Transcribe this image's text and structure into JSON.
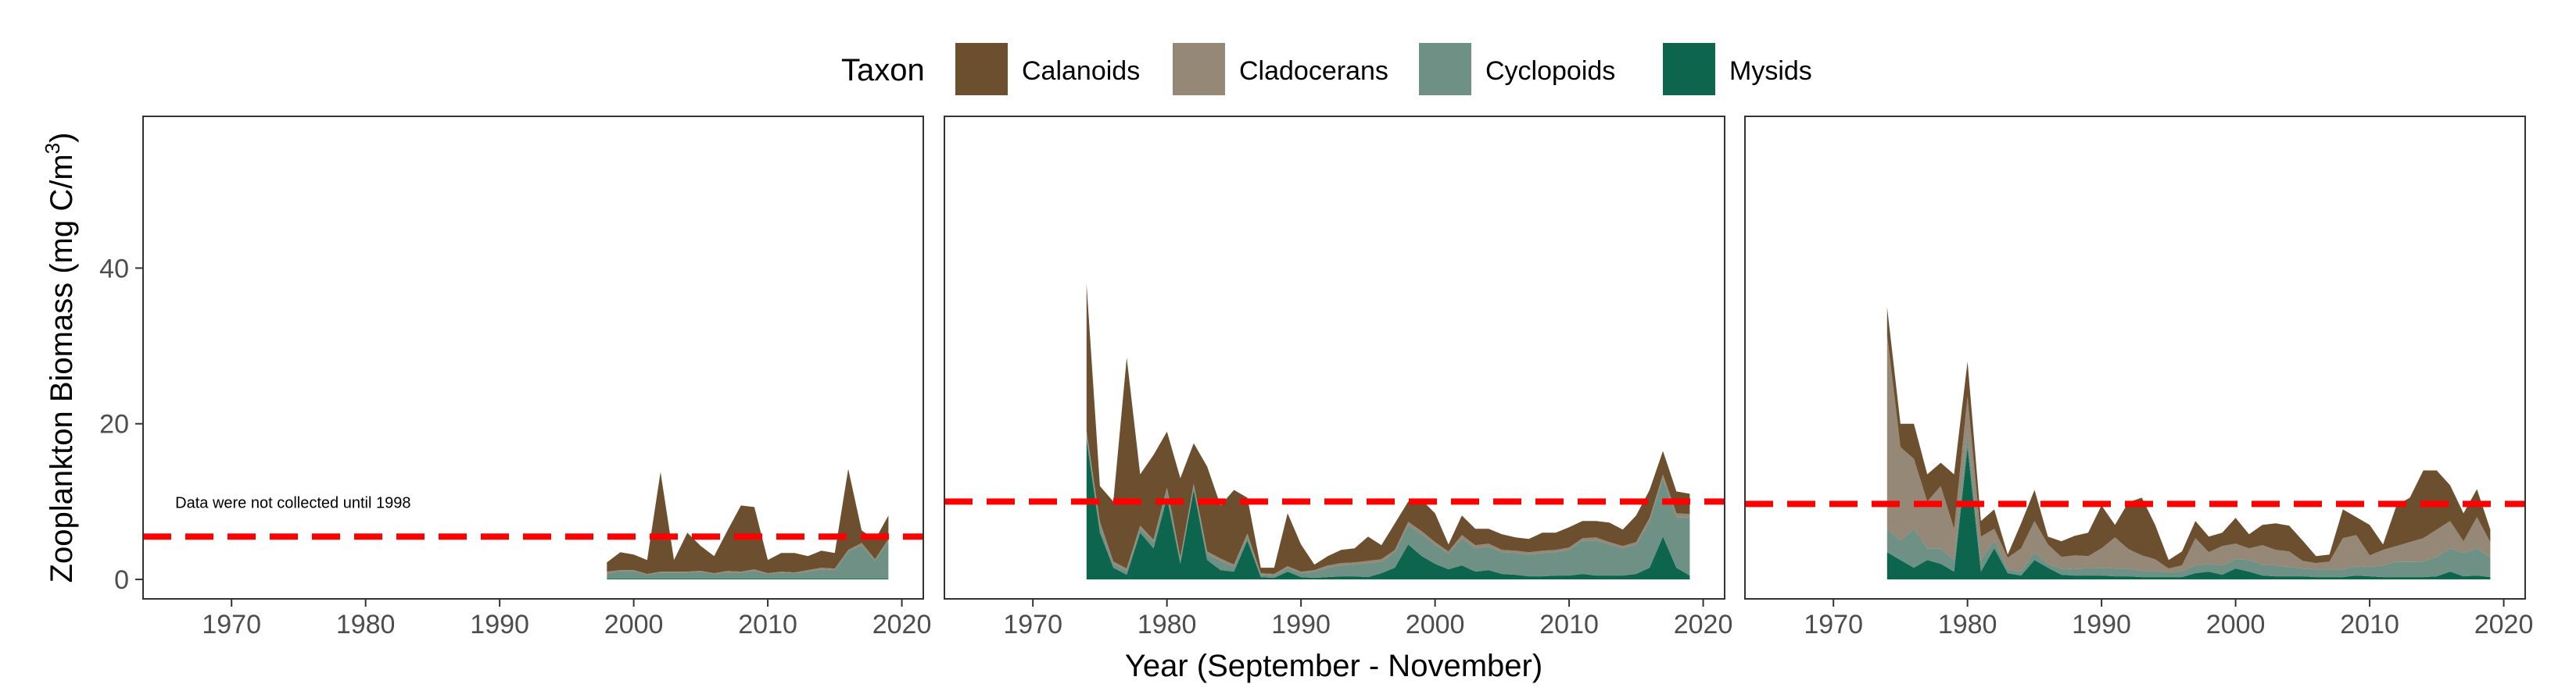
{
  "chart_data": {
    "type": "area",
    "stacked": true,
    "legend": {
      "title": "Taxon",
      "position": "top",
      "entries": [
        {
          "name": "Calanoids",
          "color": "#6B4F2E"
        },
        {
          "name": "Cladocerans",
          "color": "#958877"
        },
        {
          "name": "Cyclopoids",
          "color": "#6F9084"
        },
        {
          "name": "Mysids",
          "color": "#0C654C"
        }
      ]
    },
    "xlabel": "Year (September - November)",
    "ylabel": "Zooplankton Biomass (mg C/m³)",
    "ylabel_main": "Zooplankton Biomass (mg C/m",
    "ylabel_sup": "3",
    "ylabel_close": ")",
    "xlim": [
      1963.4,
      2021.6
    ],
    "ylim": [
      -2.5,
      59.5
    ],
    "x_ticks": [
      1970,
      1980,
      1990,
      2000,
      2010,
      2020
    ],
    "y_ticks": [
      0,
      20,
      40
    ],
    "grid": false,
    "mean_line_color": "#FF0000",
    "panels": [
      {
        "years": [
          1998,
          1999,
          2000,
          2001,
          2002,
          2003,
          2004,
          2005,
          2006,
          2007,
          2008,
          2009,
          2010,
          2011,
          2012,
          2013,
          2014,
          2015,
          2016,
          2017,
          2018,
          2019
        ],
        "series": {
          "Mysids": [
            0.1,
            0.1,
            0.1,
            0.1,
            0.1,
            0.1,
            0.1,
            0.1,
            0.1,
            0.1,
            0.1,
            0.1,
            0.1,
            0.1,
            0.1,
            0.1,
            0.1,
            0.1,
            0.1,
            0.1,
            0.1,
            0.1
          ],
          "Cyclopoids": [
            0.7,
            1.0,
            1.0,
            0.5,
            0.8,
            0.8,
            0.8,
            0.9,
            0.6,
            0.8,
            0.8,
            1.0,
            0.6,
            0.8,
            0.7,
            0.9,
            1.2,
            1.1,
            3.5,
            4.3,
            2.3,
            4.8
          ],
          "Cladocerans": [
            0.2,
            0.1,
            0.1,
            0.1,
            0.1,
            0.1,
            0.1,
            0.1,
            0.1,
            0.2,
            0.1,
            0.2,
            0.1,
            0.1,
            0.1,
            0.2,
            0.2,
            0.2,
            0.2,
            0.3,
            0.2,
            0.3
          ],
          "Calanoids": [
            1.2,
            2.3,
            2.0,
            1.8,
            12.8,
            1.5,
            5.0,
            3.2,
            2.2,
            5.2,
            8.5,
            8.0,
            1.7,
            2.4,
            2.5,
            1.8,
            2.2,
            2.0,
            10.4,
            1.6,
            2.5,
            3.0
          ]
        },
        "mean": 5.5,
        "annotation": "Data were not collected until 1998"
      },
      {
        "years": [
          1974,
          1975,
          1976,
          1977,
          1978,
          1979,
          1980,
          1981,
          1982,
          1983,
          1984,
          1985,
          1986,
          1987,
          1988,
          1989,
          1990,
          1991,
          1992,
          1993,
          1994,
          1995,
          1996,
          1997,
          1998,
          1999,
          2000,
          2001,
          2002,
          2003,
          2004,
          2005,
          2006,
          2007,
          2008,
          2009,
          2010,
          2011,
          2012,
          2013,
          2014,
          2015,
          2016,
          2017,
          2018,
          2019
        ],
        "series": {
          "Mysids": [
            18.0,
            6.0,
            1.5,
            0.6,
            6.0,
            4.0,
            10.5,
            2.0,
            11.5,
            2.5,
            1.2,
            1.0,
            5.0,
            0.3,
            0.2,
            1.0,
            0.3,
            0.2,
            0.3,
            0.4,
            0.4,
            0.3,
            0.8,
            1.5,
            4.5,
            3.0,
            2.0,
            1.3,
            1.8,
            1.0,
            1.2,
            0.7,
            0.6,
            0.4,
            0.4,
            0.5,
            0.5,
            0.7,
            0.5,
            0.5,
            0.5,
            0.7,
            1.5,
            5.5,
            1.5,
            0.5
          ],
          "Cyclopoids": [
            0.8,
            1.0,
            0.5,
            0.5,
            0.6,
            0.8,
            1.0,
            0.5,
            0.5,
            0.8,
            1.2,
            0.6,
            0.6,
            0.3,
            0.3,
            0.5,
            0.5,
            0.8,
            1.2,
            1.4,
            1.5,
            1.8,
            1.5,
            2.0,
            2.5,
            2.8,
            2.5,
            2.0,
            3.5,
            3.0,
            3.0,
            2.8,
            2.8,
            2.8,
            3.0,
            3.0,
            3.3,
            4.3,
            4.5,
            4.0,
            3.5,
            3.8,
            6.0,
            7.5,
            6.5,
            7.5
          ],
          "Cladocerans": [
            0.3,
            0.4,
            0.3,
            0.3,
            0.3,
            0.3,
            0.3,
            0.3,
            0.3,
            0.3,
            0.3,
            0.3,
            0.3,
            0.2,
            0.2,
            0.2,
            0.2,
            0.2,
            0.3,
            0.3,
            0.3,
            0.3,
            0.3,
            0.3,
            0.4,
            0.4,
            0.3,
            0.3,
            0.4,
            0.4,
            0.4,
            0.3,
            0.3,
            0.3,
            0.3,
            0.3,
            0.3,
            0.3,
            0.4,
            0.3,
            0.3,
            0.3,
            0.4,
            0.5,
            0.5,
            0.4
          ],
          "Calanoids": [
            18.9,
            4.6,
            7.7,
            27.1,
            6.6,
            10.9,
            7.2,
            10.2,
            5.2,
            10.9,
            6.8,
            9.6,
            4.6,
            0.7,
            0.8,
            6.8,
            3.5,
            0.7,
            1.2,
            1.7,
            1.8,
            3.1,
            1.8,
            3.4,
            2.6,
            4.0,
            3.7,
            0.9,
            2.5,
            2.1,
            1.9,
            2.0,
            1.7,
            1.7,
            2.3,
            2.2,
            2.6,
            2.2,
            2.1,
            2.5,
            2.1,
            3.4,
            3.6,
            3.0,
            2.8,
            2.6
          ]
        },
        "mean": 10.0
      },
      {
        "years": [
          1974,
          1975,
          1976,
          1977,
          1978,
          1979,
          1980,
          1981,
          1982,
          1983,
          1984,
          1985,
          1986,
          1987,
          1988,
          1989,
          1990,
          1991,
          1992,
          1993,
          1994,
          1995,
          1996,
          1997,
          1998,
          1999,
          2000,
          2001,
          2002,
          2003,
          2004,
          2005,
          2006,
          2007,
          2008,
          2009,
          2010,
          2011,
          2012,
          2013,
          2014,
          2015,
          2016,
          2017,
          2018,
          2019
        ],
        "series": {
          "Mysids": [
            3.5,
            2.5,
            1.5,
            2.5,
            2.0,
            1.0,
            17.0,
            1.0,
            4.0,
            0.8,
            0.5,
            2.5,
            1.5,
            0.6,
            0.5,
            0.5,
            0.5,
            0.4,
            0.4,
            0.3,
            0.3,
            0.3,
            0.3,
            0.8,
            1.0,
            0.6,
            1.4,
            1.0,
            0.5,
            0.4,
            0.4,
            0.4,
            0.3,
            0.3,
            0.3,
            0.5,
            0.4,
            0.3,
            0.3,
            0.3,
            0.3,
            0.4,
            1.0,
            0.4,
            0.5,
            0.3
          ],
          "Cyclopoids": [
            3.0,
            2.5,
            5.0,
            1.5,
            2.0,
            1.5,
            2.0,
            1.5,
            1.0,
            0.5,
            0.5,
            1.0,
            0.5,
            0.8,
            0.8,
            1.0,
            1.0,
            1.0,
            1.0,
            0.8,
            0.8,
            0.6,
            0.8,
            1.0,
            1.0,
            1.2,
            1.2,
            1.5,
            1.4,
            1.4,
            1.2,
            1.0,
            1.0,
            1.0,
            1.0,
            1.2,
            1.2,
            1.5,
            2.0,
            2.0,
            2.0,
            2.5,
            3.0,
            3.0,
            3.5,
            2.5
          ],
          "Cladocerans": [
            25.0,
            12.0,
            9.0,
            6.0,
            8.0,
            4.0,
            4.5,
            3.0,
            1.5,
            1.5,
            3.0,
            4.0,
            2.5,
            1.5,
            1.8,
            1.5,
            2.5,
            4.0,
            2.5,
            2.0,
            1.5,
            0.5,
            0.7,
            3.5,
            1.5,
            2.5,
            2.0,
            1.5,
            2.5,
            2.0,
            2.0,
            1.0,
            0.8,
            1.0,
            4.0,
            4.0,
            1.5,
            2.0,
            2.0,
            2.5,
            3.0,
            3.5,
            3.5,
            1.5,
            4.0,
            2.0
          ],
          "Calanoids": [
            3.5,
            3.0,
            4.5,
            3.5,
            3.0,
            7.0,
            4.5,
            2.0,
            2.5,
            0.4,
            3.2,
            4.0,
            1.0,
            2.0,
            2.5,
            3.0,
            5.5,
            1.6,
            6.0,
            7.4,
            4.4,
            1.1,
            1.8,
            2.2,
            2.0,
            1.7,
            3.3,
            1.8,
            2.6,
            3.4,
            3.3,
            2.6,
            0.9,
            0.9,
            3.7,
            2.3,
            3.9,
            0.7,
            5.2,
            5.7,
            8.7,
            7.6,
            4.6,
            3.6,
            3.6,
            1.6
          ]
        },
        "mean": 9.7
      }
    ]
  }
}
